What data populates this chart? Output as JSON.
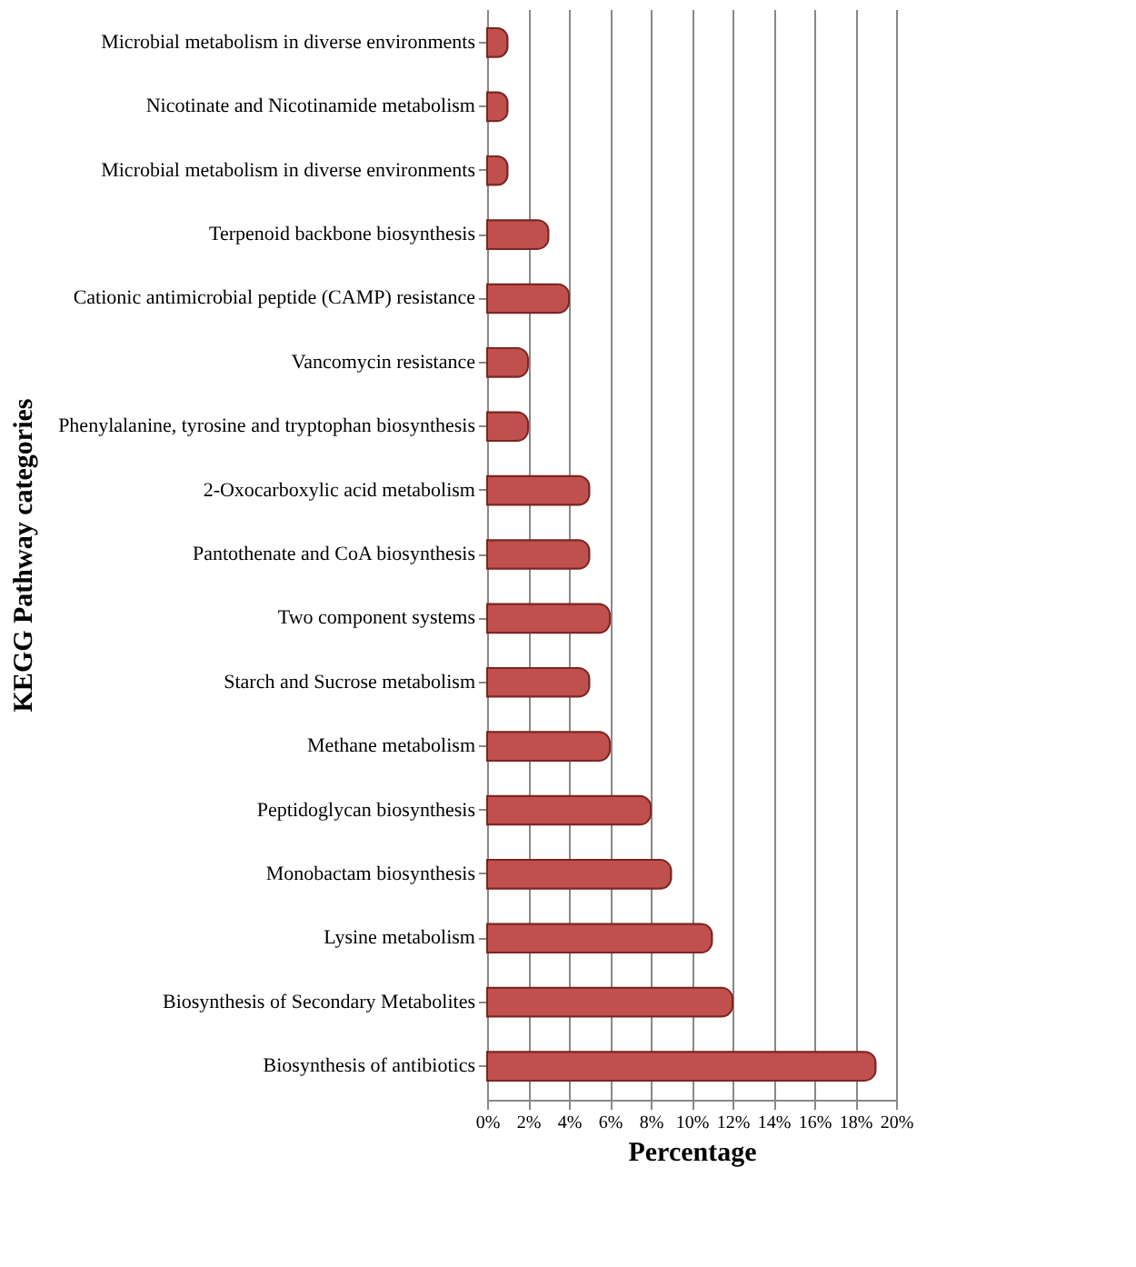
{
  "chart_data": {
    "type": "bar",
    "orientation": "horizontal",
    "xlabel": "Percentage",
    "ylabel": "KEGG Pathway  categories",
    "categories": [
      "Microbial metabolism in diverse environments",
      "Nicotinate and Nicotinamide metabolism",
      "Microbial metabolism in diverse environments",
      "Terpenoid backbone biosynthesis",
      "Cationic antimicrobial peptide (CAMP) resistance",
      "Vancomycin resistance",
      "Phenylalanine, tyrosine and tryptophan biosynthesis",
      "2-Oxocarboxylic acid metabolism",
      "Pantothenate and CoA biosynthesis",
      "Two component systems",
      "Starch and Sucrose metabolism",
      "Methane metabolism",
      "Peptidoglycan biosynthesis",
      "Monobactam biosynthesis",
      "Lysine metabolism",
      "Biosynthesis of Secondary Metabolites",
      "Biosynthesis of antibiotics"
    ],
    "values": [
      1,
      1,
      1,
      3,
      4,
      2,
      2,
      5,
      5,
      6,
      5,
      6,
      8,
      9,
      11,
      12,
      19
    ],
    "color": "#c0504d",
    "xlim": [
      0,
      20
    ],
    "xticks": [
      {
        "value": 0,
        "label": "0%"
      },
      {
        "value": 2,
        "label": "2%"
      },
      {
        "value": 4,
        "label": "4%"
      },
      {
        "value": 6,
        "label": "6%"
      },
      {
        "value": 8,
        "label": "8%"
      },
      {
        "value": 10,
        "label": "10%"
      },
      {
        "value": 12,
        "label": "12%"
      },
      {
        "value": 14,
        "label": "14%"
      },
      {
        "value": 16,
        "label": "16%"
      },
      {
        "value": 18,
        "label": "18%"
      },
      {
        "value": 20,
        "label": "20%"
      }
    ],
    "grid": "x"
  }
}
